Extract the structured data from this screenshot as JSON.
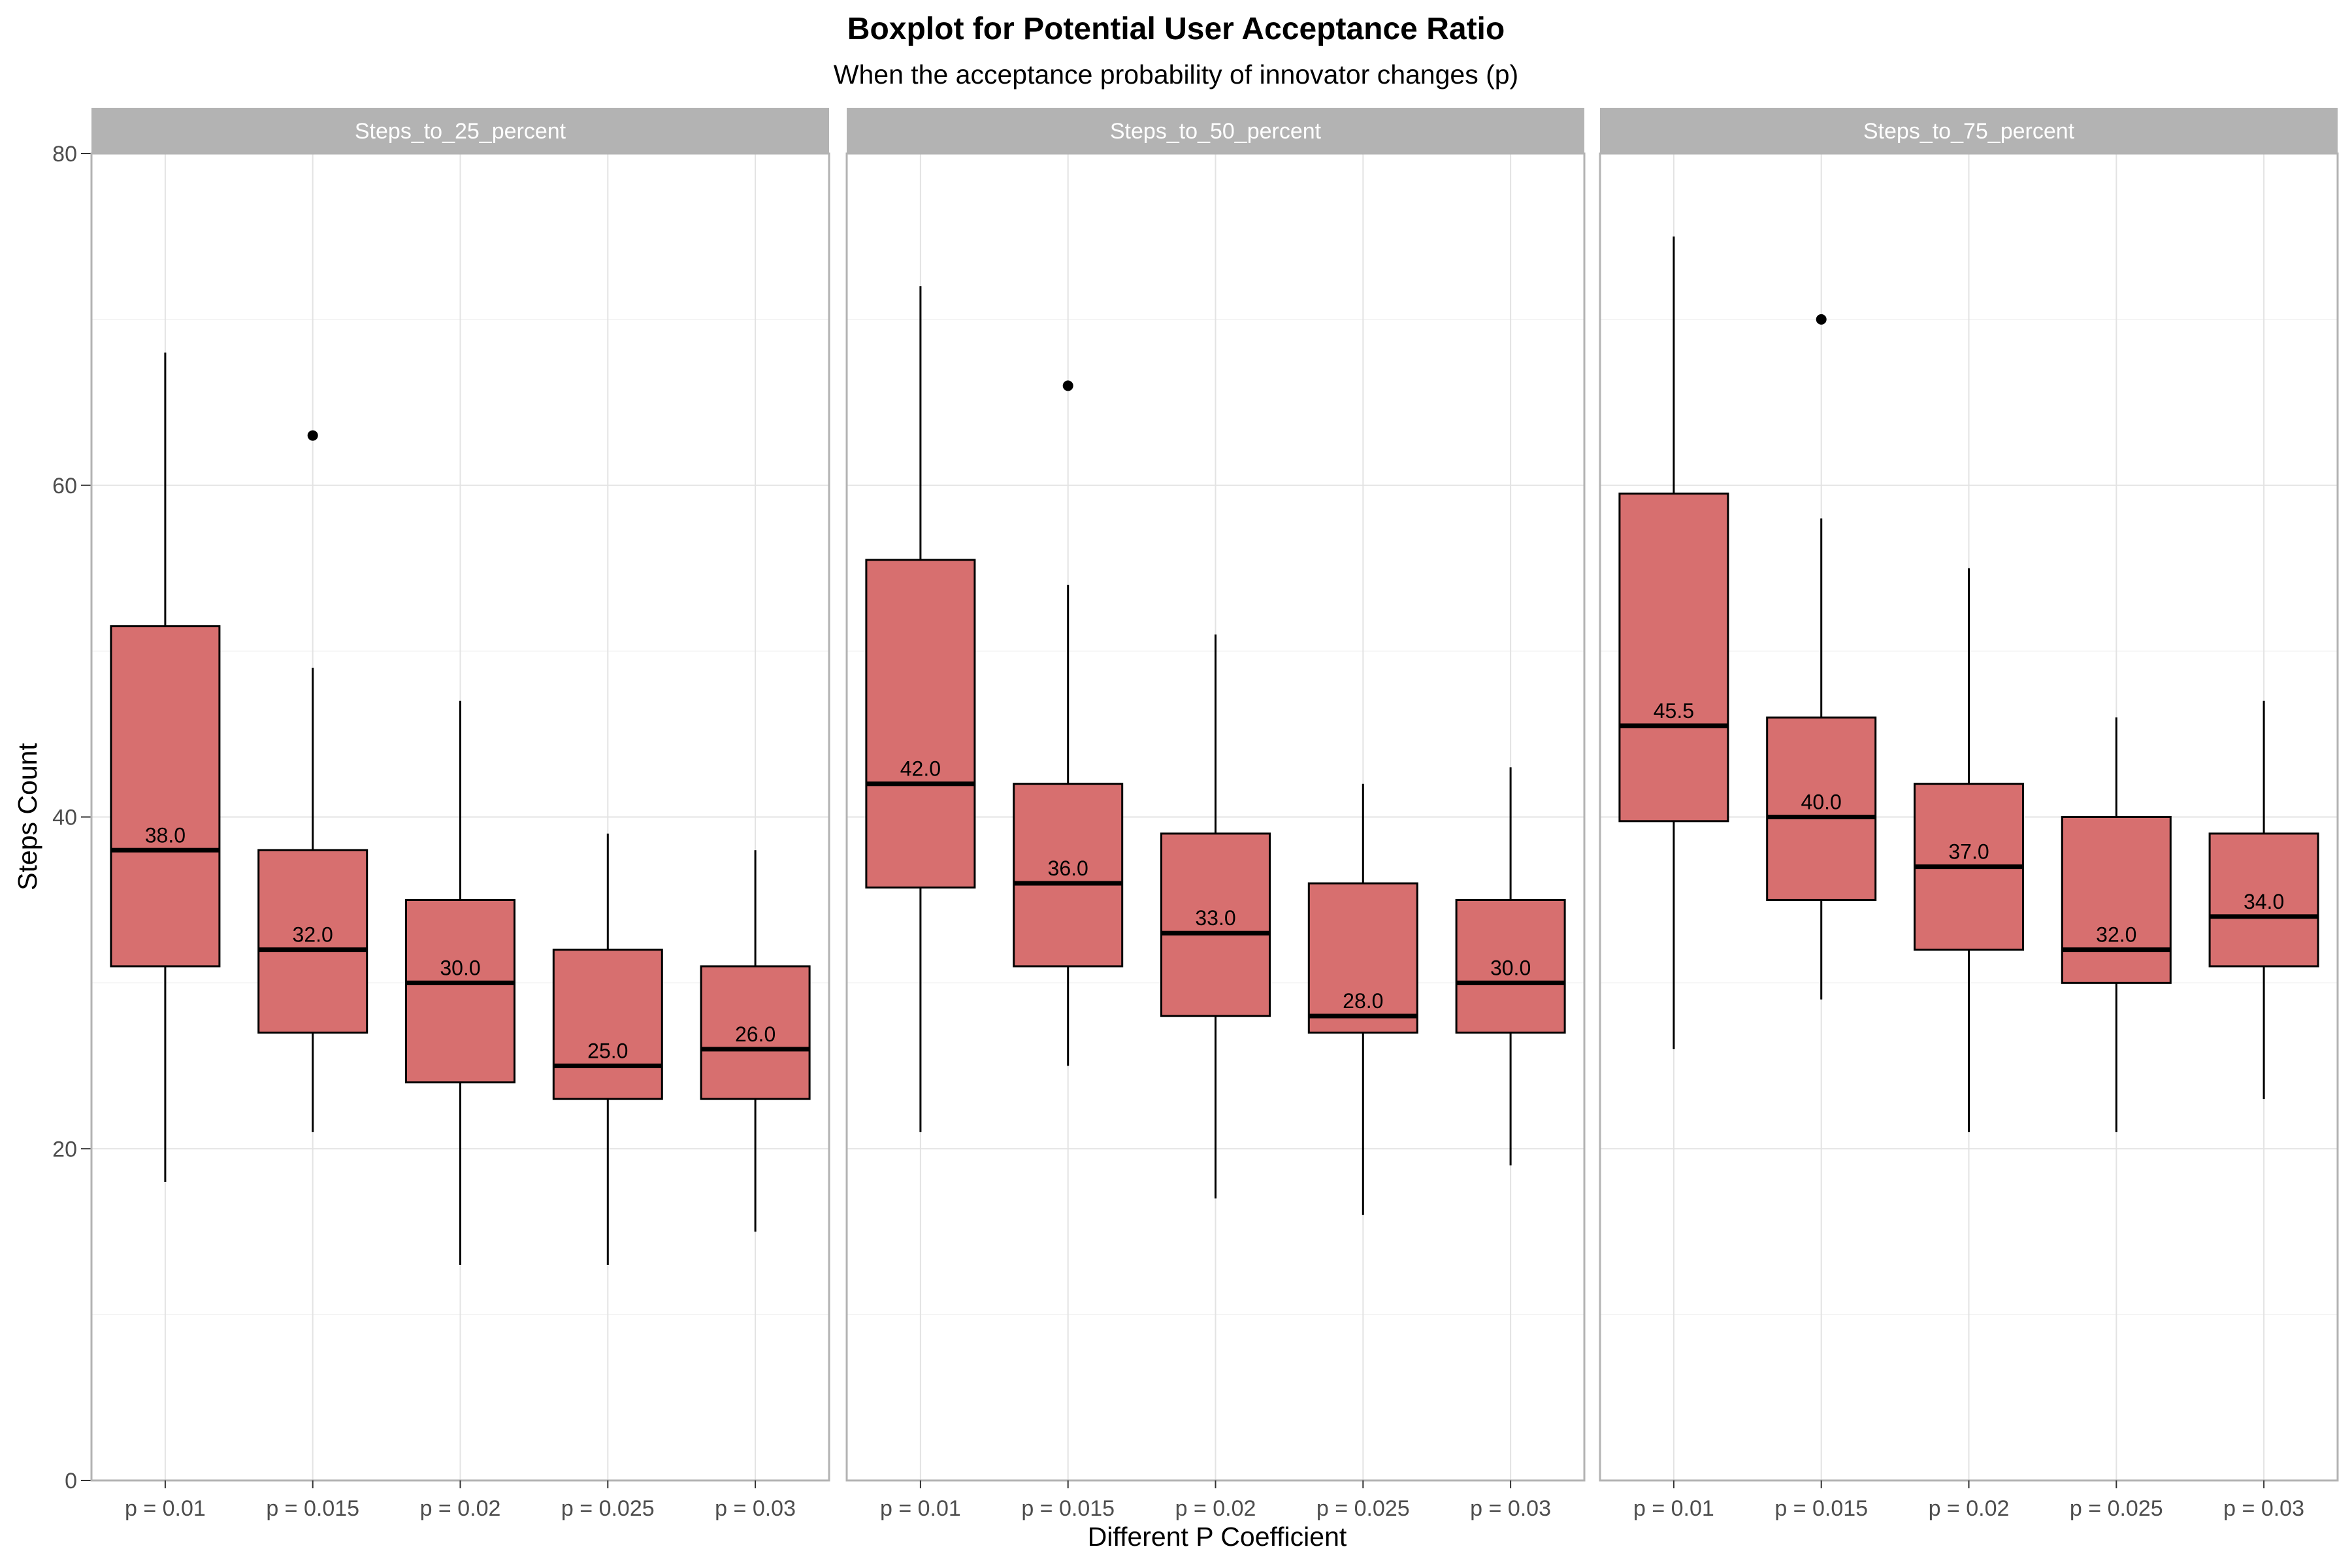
{
  "chart_data": {
    "type": "boxplot",
    "title": "Boxplot for Potential User Acceptance Ratio",
    "subtitle": "When the acceptance probability of innovator changes (p)",
    "xlabel": "Different P Coefficient",
    "ylabel": "Steps Count",
    "ylim": [
      0,
      80
    ],
    "y_ticks": [
      0,
      20,
      40,
      60,
      80
    ],
    "grid": true,
    "fill_color": "#d76f6f",
    "strip_color": "#b3b3b3",
    "categories": [
      "p = 0.01",
      "p = 0.015",
      "p = 0.02",
      "p = 0.025",
      "p = 0.03"
    ],
    "panels": [
      {
        "name": "Steps_to_25_percent",
        "boxes": [
          {
            "category": "p = 0.01",
            "min": 18,
            "q1": 31,
            "median": 38,
            "q3": 51.5,
            "max": 68,
            "median_label": "38.0",
            "outliers": []
          },
          {
            "category": "p = 0.015",
            "min": 21,
            "q1": 27,
            "median": 32,
            "q3": 38,
            "max": 49,
            "median_label": "32.0",
            "outliers": [
              63
            ]
          },
          {
            "category": "p = 0.02",
            "min": 13,
            "q1": 24,
            "median": 30,
            "q3": 35,
            "max": 47,
            "median_label": "30.0",
            "outliers": []
          },
          {
            "category": "p = 0.025",
            "min": 13,
            "q1": 23,
            "median": 25,
            "q3": 32,
            "max": 39,
            "median_label": "25.0",
            "outliers": []
          },
          {
            "category": "p = 0.03",
            "min": 15,
            "q1": 23,
            "median": 26,
            "q3": 31,
            "max": 38,
            "median_label": "26.0",
            "outliers": []
          }
        ]
      },
      {
        "name": "Steps_to_50_percent",
        "boxes": [
          {
            "category": "p = 0.01",
            "min": 21,
            "q1": 35.75,
            "median": 42,
            "q3": 55.5,
            "max": 72,
            "median_label": "42.0",
            "outliers": []
          },
          {
            "category": "p = 0.015",
            "min": 25,
            "q1": 31,
            "median": 36,
            "q3": 42,
            "max": 54,
            "median_label": "36.0",
            "outliers": [
              66
            ]
          },
          {
            "category": "p = 0.02",
            "min": 17,
            "q1": 28,
            "median": 33,
            "q3": 39,
            "max": 51,
            "median_label": "33.0",
            "outliers": []
          },
          {
            "category": "p = 0.025",
            "min": 16,
            "q1": 27,
            "median": 28,
            "q3": 36,
            "max": 42,
            "median_label": "28.0",
            "outliers": []
          },
          {
            "category": "p = 0.03",
            "min": 19,
            "q1": 27,
            "median": 30,
            "q3": 35,
            "max": 43,
            "median_label": "30.0",
            "outliers": []
          }
        ]
      },
      {
        "name": "Steps_to_75_percent",
        "boxes": [
          {
            "category": "p = 0.01",
            "min": 26,
            "q1": 39.75,
            "median": 45.5,
            "q3": 59.5,
            "max": 75,
            "median_label": "45.5",
            "outliers": []
          },
          {
            "category": "p = 0.015",
            "min": 29,
            "q1": 35,
            "median": 40,
            "q3": 46,
            "max": 58,
            "median_label": "40.0",
            "outliers": [
              70
            ]
          },
          {
            "category": "p = 0.02",
            "min": 21,
            "q1": 32,
            "median": 37,
            "q3": 42,
            "max": 55,
            "median_label": "37.0",
            "outliers": []
          },
          {
            "category": "p = 0.025",
            "min": 21,
            "q1": 30,
            "median": 32,
            "q3": 40,
            "max": 46,
            "median_label": "32.0",
            "outliers": []
          },
          {
            "category": "p = 0.03",
            "min": 23,
            "q1": 31,
            "median": 34,
            "q3": 39,
            "max": 47,
            "median_label": "34.0",
            "outliers": []
          }
        ]
      }
    ]
  }
}
